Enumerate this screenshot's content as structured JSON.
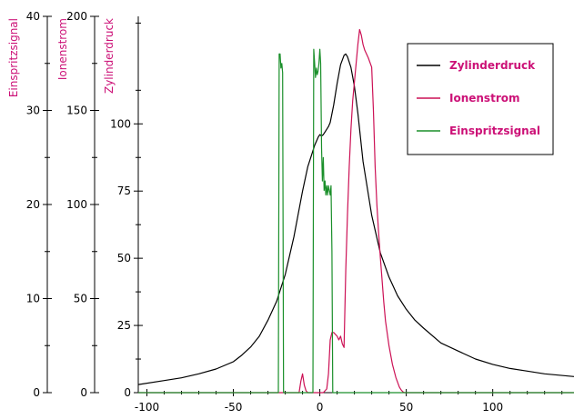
{
  "chart_data": {
    "type": "line",
    "x_ticks": [
      -100,
      -50,
      0,
      50,
      100
    ],
    "xlim": [
      -105,
      147
    ],
    "axes": [
      {
        "id": "zylinderdruck",
        "label": "Zylinderdruck",
        "label_color": "#cc1177",
        "ylim": [
          0,
          140
        ],
        "ticks": [
          0,
          25,
          50,
          75,
          100
        ]
      },
      {
        "id": "ionenstrom",
        "label": "Ionenstrom",
        "label_color": "#cc1177",
        "ylim": [
          0,
          200
        ],
        "ticks": [
          0,
          50,
          100,
          150,
          200
        ]
      },
      {
        "id": "einspritzsignal",
        "label": "Einspritzsignal",
        "label_color": "#cc1177",
        "ylim": [
          0,
          40
        ],
        "ticks": [
          0,
          10,
          20,
          30,
          40
        ]
      }
    ],
    "legend": {
      "position": "top-right",
      "text_color": "#cc1177"
    },
    "series": [
      {
        "name": "Zylinderdruck",
        "color": "#000000",
        "axis": "zylinderdruck",
        "x": [
          -105,
          -90,
          -80,
          -70,
          -60,
          -50,
          -45,
          -40,
          -35,
          -30,
          -25,
          -20,
          -15,
          -10,
          -7,
          -5,
          -3,
          -1,
          0,
          1,
          2,
          3,
          4,
          5,
          6,
          8,
          10,
          12,
          14,
          15,
          16,
          18,
          20,
          22,
          25,
          30,
          35,
          40,
          45,
          50,
          55,
          60,
          70,
          80,
          90,
          100,
          110,
          120,
          130,
          147
        ],
        "y": [
          3,
          4.5,
          5.5,
          7,
          8.8,
          11.5,
          14,
          17,
          21,
          27,
          34,
          44,
          58,
          75,
          84,
          88,
          92,
          95,
          96,
          95.5,
          96,
          97,
          98,
          99,
          100.5,
          107,
          115,
          122,
          125.5,
          126,
          125,
          121,
          114,
          104,
          86,
          66,
          52,
          43,
          36,
          31,
          27,
          24,
          18.5,
          15.5,
          12.5,
          10.5,
          9,
          8,
          7,
          6
        ]
      },
      {
        "name": "Ionenstrom",
        "color": "#cc1155",
        "axis": "ionenstrom",
        "x": [
          -105,
          -12,
          -11,
          -10,
          -9,
          -8,
          -7,
          -6,
          -4,
          -2,
          0,
          2,
          4,
          5,
          6,
          7,
          8,
          10,
          11,
          12,
          13,
          14,
          15,
          16,
          17,
          18,
          19,
          20,
          21,
          22,
          23,
          24,
          25,
          26,
          28,
          30,
          31,
          32,
          33,
          34,
          35,
          36,
          37,
          38,
          40,
          42,
          44,
          46,
          47,
          48,
          49,
          50,
          147
        ],
        "y": [
          0,
          0,
          6,
          10,
          4,
          1,
          0,
          0,
          0,
          0,
          0,
          0,
          2,
          10,
          28,
          32,
          32,
          30,
          28,
          30,
          26,
          24,
          65,
          95,
          120,
          140,
          155,
          165,
          175,
          185,
          193,
          190,
          185,
          182,
          178,
          173,
          150,
          120,
          100,
          85,
          72,
          60,
          48,
          38,
          25,
          15,
          8,
          3,
          1.5,
          0.5,
          0,
          0,
          0
        ]
      },
      {
        "name": "Einspritzsignal",
        "color": "#1a8f2a",
        "axis": "einspritzsignal",
        "x": [
          -105,
          -24,
          -23.5,
          -23,
          -22.5,
          -22,
          -21.5,
          -21,
          -20.5,
          -20,
          -5,
          -4,
          -3.5,
          -3,
          -2.5,
          -2,
          -1.5,
          -1,
          -0.5,
          0,
          0.5,
          1,
          1.5,
          2,
          2.5,
          3,
          3.5,
          4,
          4.5,
          5,
          5.5,
          6,
          6.5,
          7,
          7.5,
          8,
          8.5,
          147
        ],
        "y": [
          0,
          0,
          36,
          36,
          34.5,
          35,
          34,
          0,
          0,
          0,
          0,
          0,
          36.5,
          35,
          33.5,
          34.5,
          33.8,
          34.2,
          35,
          36.5,
          35,
          26,
          22.5,
          25,
          21.5,
          22.5,
          21,
          22,
          21,
          22,
          21.5,
          21,
          22,
          15,
          0,
          0,
          0,
          0
        ]
      }
    ]
  }
}
